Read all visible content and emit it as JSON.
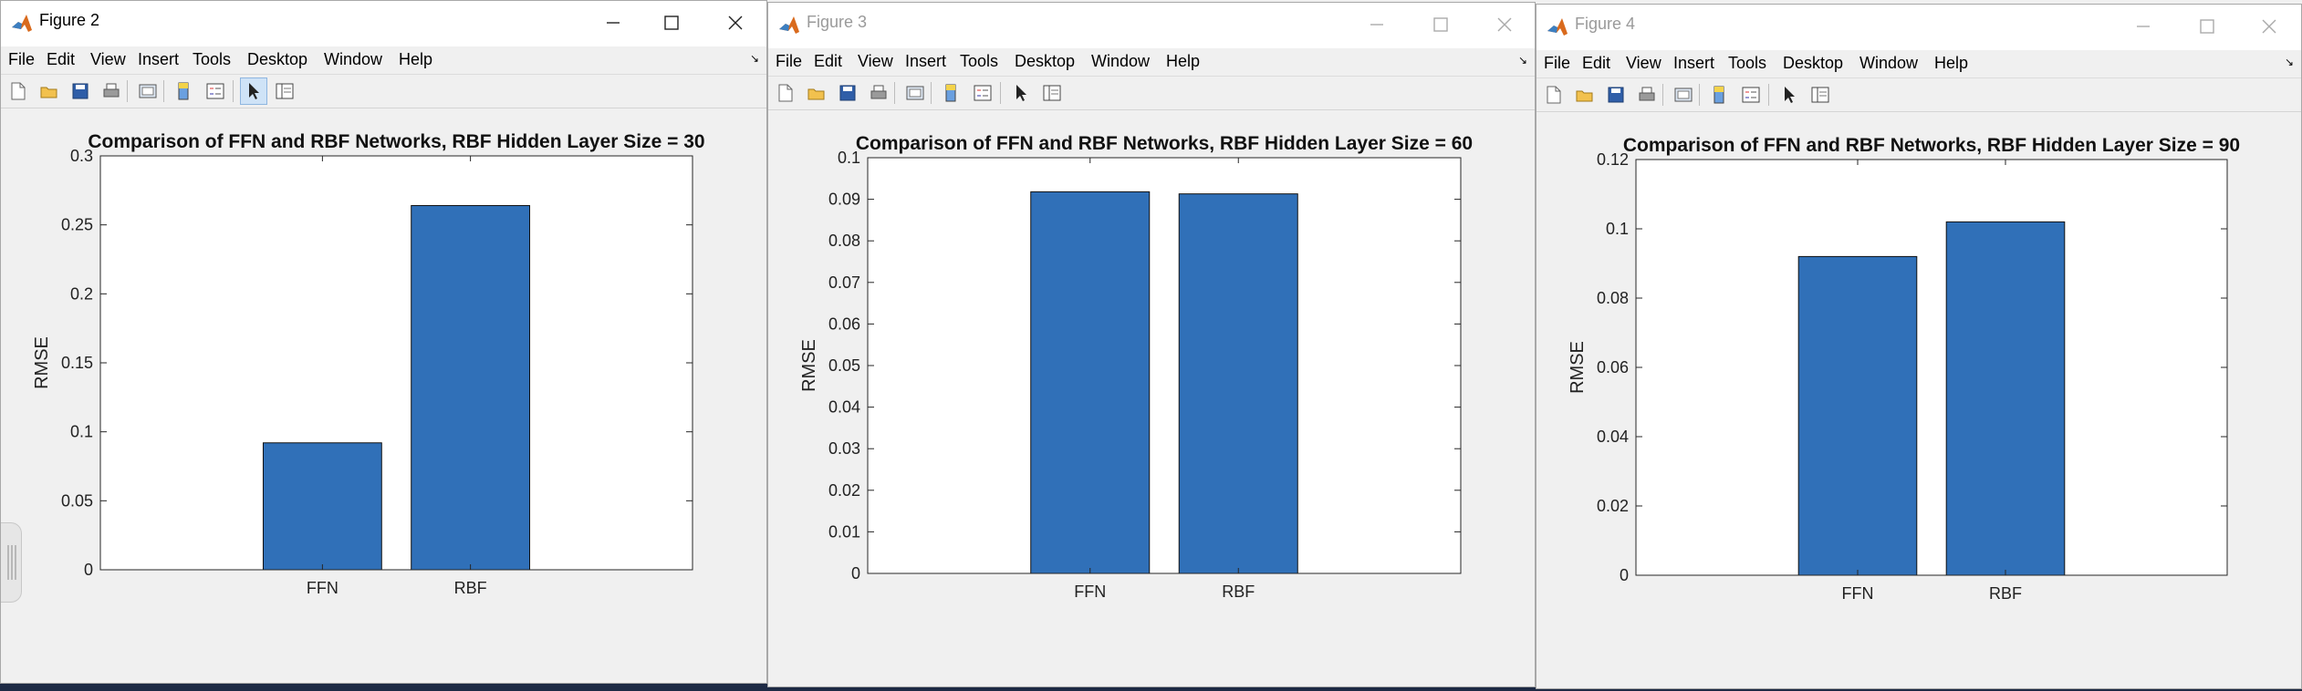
{
  "menu": [
    "File",
    "Edit",
    "View",
    "Insert",
    "Tools",
    "Desktop",
    "Window",
    "Help"
  ],
  "icons": {
    "app": "matlab-logo-icon",
    "toolbar": [
      "new-figure-icon",
      "open-file-icon",
      "save-icon",
      "print-icon",
      "link-plot-icon",
      "colorbar-icon",
      "legend-icon",
      "pointer-icon",
      "property-inspector-icon"
    ]
  },
  "windows": [
    {
      "title": "Figure 2",
      "active": true,
      "chart_data": {
        "type": "bar",
        "title": "Comparison of FFN and RBF Networks, RBF Hidden Layer Size = 30",
        "ylabel": "RMSE",
        "categories": [
          "FFN",
          "RBF"
        ],
        "values": [
          0.092,
          0.264
        ],
        "ylim": [
          0,
          0.3
        ],
        "yticks": [
          0,
          0.05,
          0.1,
          0.15,
          0.2,
          0.25,
          0.3
        ],
        "ytick_labels": [
          "0",
          "0.05",
          "0.1",
          "0.15",
          "0.2",
          "0.25",
          "0.3"
        ],
        "bar_color": "#3070b8",
        "grid": false
      }
    },
    {
      "title": "Figure 3",
      "active": false,
      "chart_data": {
        "type": "bar",
        "title": "Comparison of FFN and RBF Networks, RBF Hidden Layer Size = 60",
        "ylabel": "RMSE",
        "categories": [
          "FFN",
          "RBF"
        ],
        "values": [
          0.0918,
          0.0913
        ],
        "ylim": [
          0,
          0.1
        ],
        "yticks": [
          0,
          0.01,
          0.02,
          0.03,
          0.04,
          0.05,
          0.06,
          0.07,
          0.08,
          0.09,
          0.1
        ],
        "ytick_labels": [
          "0",
          "0.01",
          "0.02",
          "0.03",
          "0.04",
          "0.05",
          "0.06",
          "0.07",
          "0.08",
          "0.09",
          "0.1"
        ],
        "bar_color": "#3070b8",
        "grid": false
      }
    },
    {
      "title": "Figure 4",
      "active": false,
      "chart_data": {
        "type": "bar",
        "title": "Comparison of FFN and RBF Networks, RBF Hidden Layer Size = 90",
        "ylabel": "RMSE",
        "categories": [
          "FFN",
          "RBF"
        ],
        "values": [
          0.092,
          0.102
        ],
        "ylim": [
          0,
          0.12
        ],
        "yticks": [
          0,
          0.02,
          0.04,
          0.06,
          0.08,
          0.1,
          0.12
        ],
        "ytick_labels": [
          "0",
          "0.02",
          "0.04",
          "0.06",
          "0.08",
          "0.1",
          "0.12"
        ],
        "bar_color": "#3070b8",
        "grid": false
      }
    }
  ]
}
